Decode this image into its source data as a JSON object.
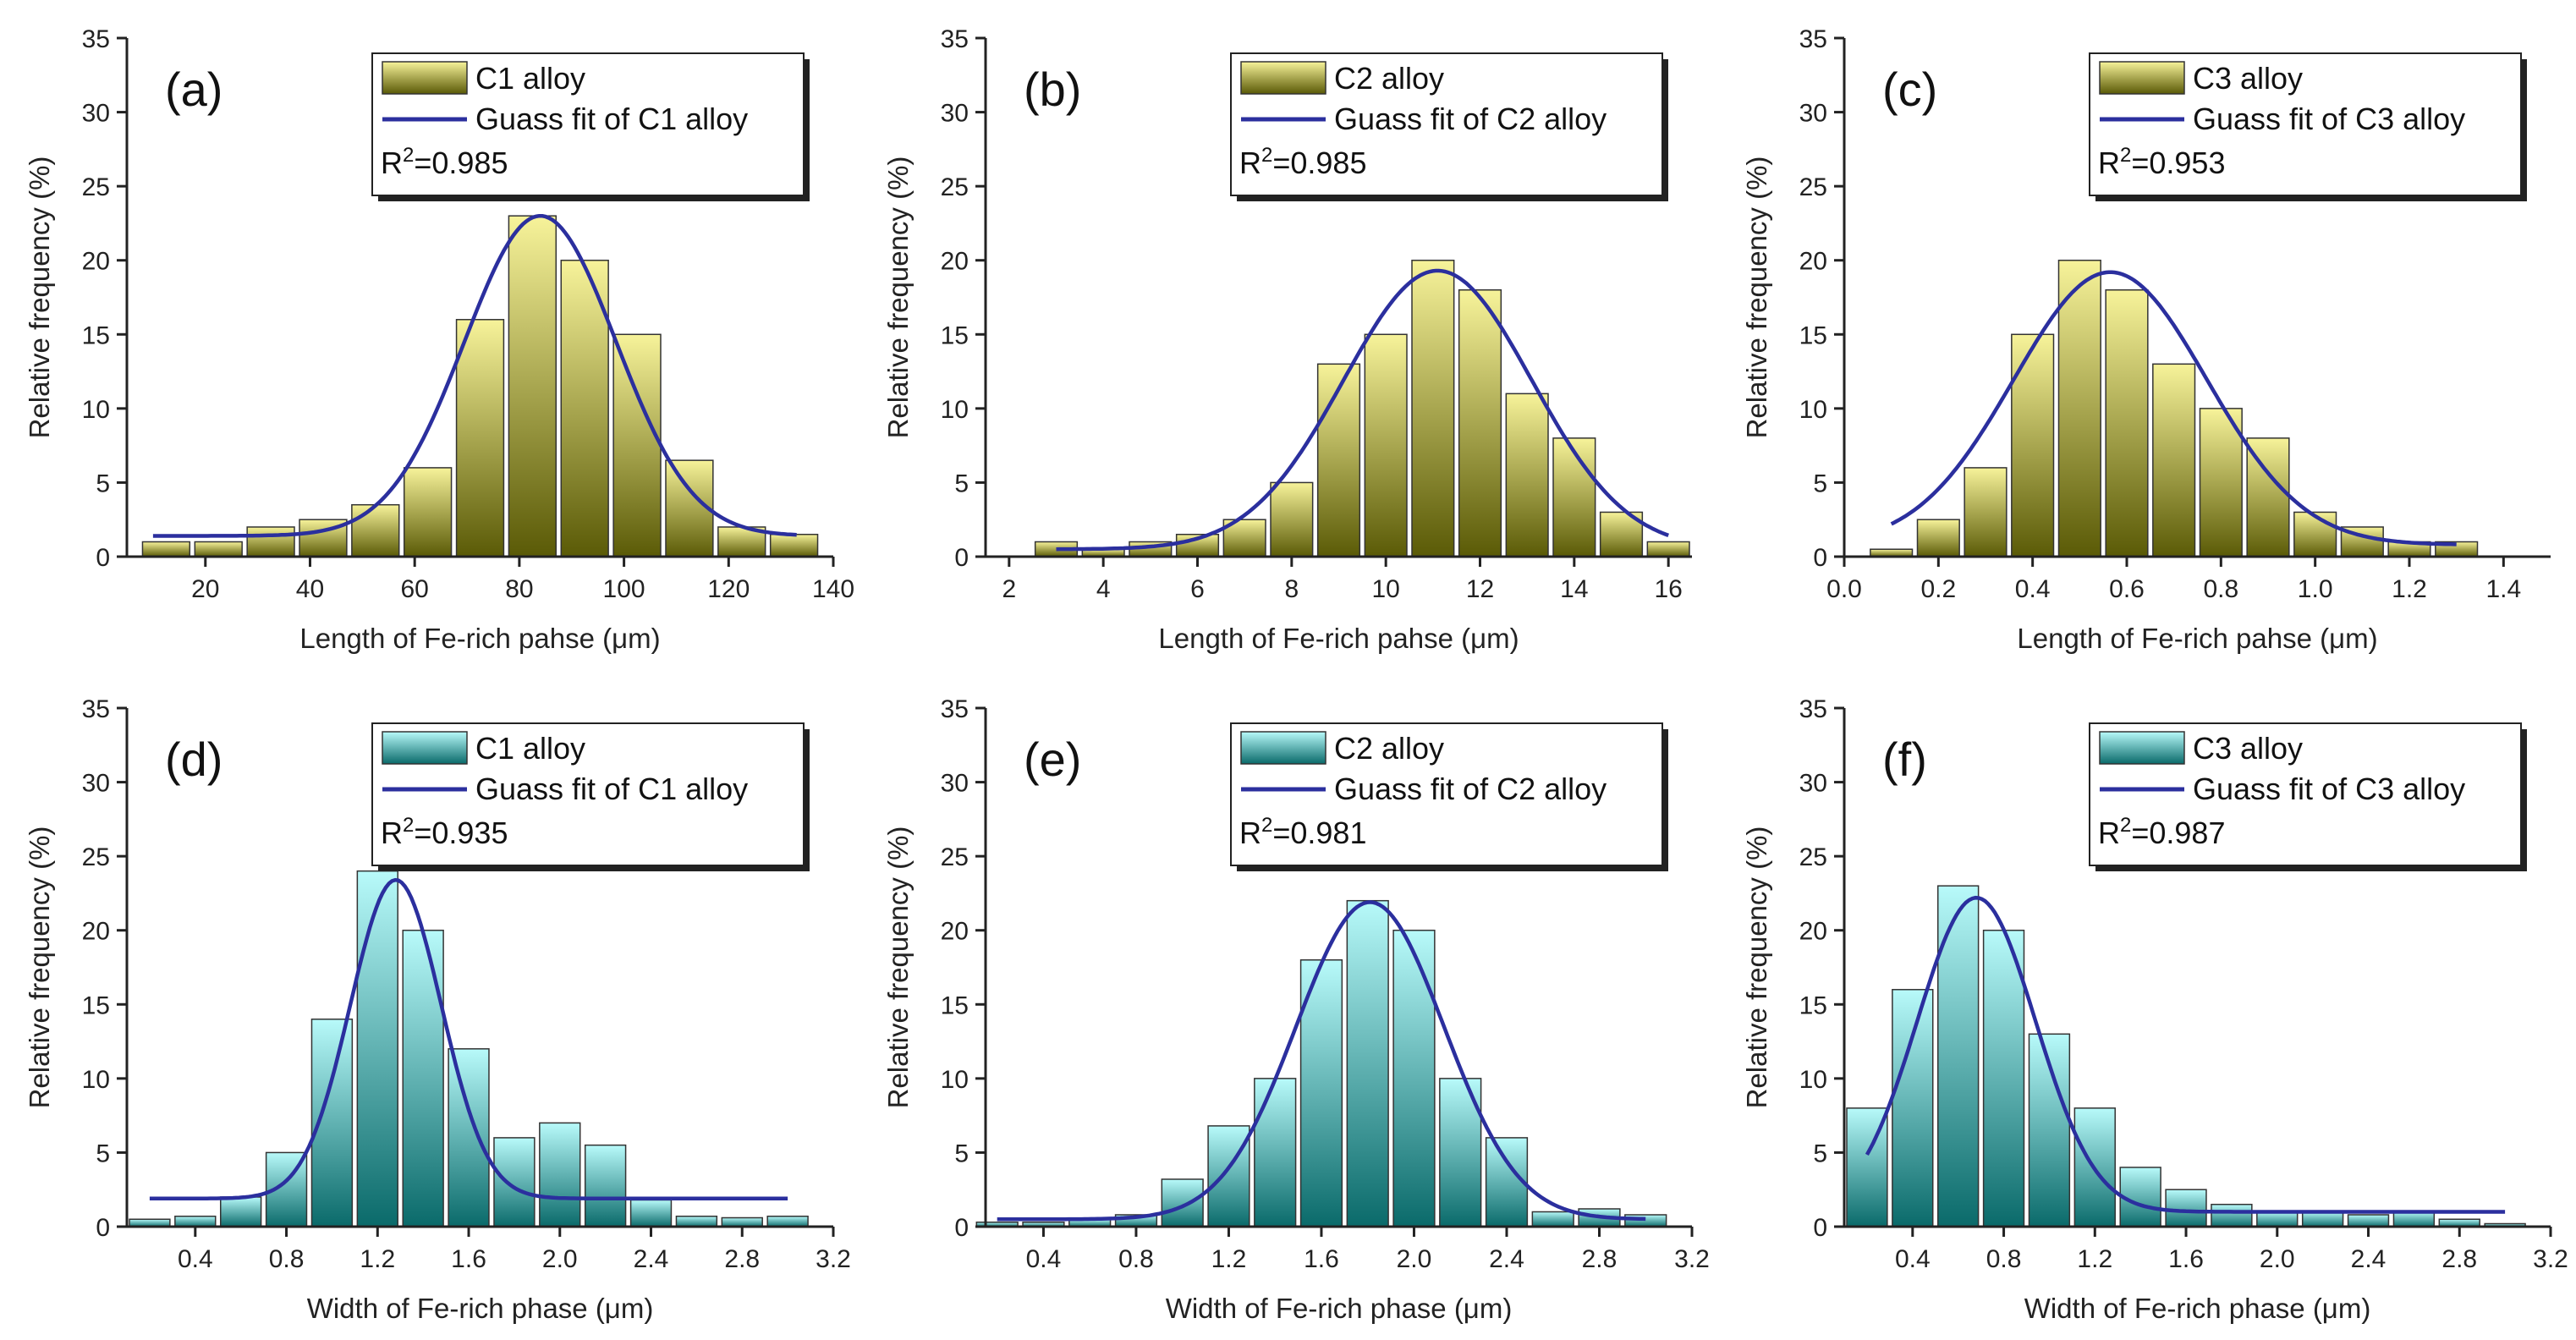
{
  "colors": {
    "fit": "#2b2f9e",
    "yellow_top": "#f7f39a",
    "yellow_bottom": "#5a5a06",
    "cyan_top": "#b8fafa",
    "cyan_bottom": "#0a6a6a"
  },
  "chart_data": [
    {
      "id": "a",
      "type": "bar",
      "panel_label": "(a)",
      "xlabel": "Length of Fe-rich pahse (μm)",
      "ylabel": "Relative frequency (%)",
      "xlim": [
        5,
        140
      ],
      "ylim": [
        0,
        35
      ],
      "x_ticks": [
        20,
        40,
        60,
        80,
        100,
        120,
        140
      ],
      "x_tick_labels": [
        "20",
        "40",
        "60",
        "80",
        "100",
        "120",
        "140"
      ],
      "y_ticks": [
        0,
        5,
        10,
        15,
        20,
        25,
        30,
        35
      ],
      "y_tick_labels": [
        "0",
        "5",
        "10",
        "15",
        "20",
        "25",
        "30",
        "35"
      ],
      "bin_width": 10,
      "x": [
        12.5,
        22.5,
        32.5,
        42.5,
        52.5,
        62.5,
        72.5,
        82.5,
        92.5,
        102.5,
        112.5,
        122.5,
        132.5
      ],
      "values": [
        1.0,
        1.0,
        2.0,
        2.5,
        3.5,
        6.0,
        16.0,
        23.0,
        20.0,
        15.0,
        6.5,
        2.0,
        1.5
      ],
      "fit": {
        "base": 1.4,
        "amp": 21.6,
        "center": 84,
        "sigma": 14.5,
        "range": [
          10,
          133
        ]
      },
      "palette": "yellow",
      "legend": {
        "bar_label": "C1 alloy",
        "fit_label": "Guass fit of C1 alloy",
        "r2_text": "R",
        "r2_sup": "2",
        "r2_value": "=0.985"
      }
    },
    {
      "id": "b",
      "type": "bar",
      "panel_label": "(b)",
      "xlabel": "Length of Fe-rich pahse (μm)",
      "ylabel": "Relative frequency (%)",
      "xlim": [
        1.5,
        16.5
      ],
      "ylim": [
        0,
        35
      ],
      "x_ticks": [
        2,
        4,
        6,
        8,
        10,
        12,
        14,
        16
      ],
      "x_tick_labels": [
        "2",
        "4",
        "6",
        "8",
        "10",
        "12",
        "14",
        "16"
      ],
      "y_ticks": [
        0,
        5,
        10,
        15,
        20,
        25,
        30,
        35
      ],
      "y_tick_labels": [
        "0",
        "5",
        "10",
        "15",
        "20",
        "25",
        "30",
        "35"
      ],
      "bin_width": 1,
      "x": [
        3,
        4,
        5,
        6,
        7,
        8,
        9,
        10,
        11,
        12,
        13,
        14,
        15,
        16
      ],
      "values": [
        1.0,
        0.5,
        1.0,
        1.5,
        2.5,
        5.0,
        13.0,
        15.0,
        20.0,
        18.0,
        11.0,
        8.0,
        3.0,
        1.0
      ],
      "fit": {
        "base": 0.5,
        "amp": 18.8,
        "center": 11.1,
        "sigma": 2.0,
        "range": [
          3,
          16
        ]
      },
      "palette": "yellow",
      "legend": {
        "bar_label": "C2 alloy",
        "fit_label": "Guass fit of C2 alloy",
        "r2_text": "R",
        "r2_sup": "2",
        "r2_value": "=0.985"
      }
    },
    {
      "id": "c",
      "type": "bar",
      "panel_label": "(c)",
      "xlabel": "Length of Fe-rich pahse (μm)",
      "ylabel": "Relative frequency (%)",
      "xlim": [
        0,
        1.5
      ],
      "ylim": [
        0,
        35
      ],
      "x_ticks": [
        0.0,
        0.2,
        0.4,
        0.6,
        0.8,
        1.0,
        1.2,
        1.4
      ],
      "x_tick_labels": [
        "0.0",
        "0.2",
        "0.4",
        "0.6",
        "0.8",
        "1.0",
        "1.2",
        "1.4"
      ],
      "y_ticks": [
        0,
        5,
        10,
        15,
        20,
        25,
        30,
        35
      ],
      "y_tick_labels": [
        "0",
        "5",
        "10",
        "15",
        "20",
        "25",
        "30",
        "35"
      ],
      "bin_width": 0.1,
      "x": [
        0.1,
        0.2,
        0.3,
        0.4,
        0.5,
        0.6,
        0.7,
        0.8,
        0.9,
        1.0,
        1.1,
        1.2,
        1.3
      ],
      "values": [
        0.5,
        2.5,
        6.0,
        15.0,
        20.0,
        18.0,
        13.0,
        10.0,
        8.0,
        3.0,
        2.0,
        1.0,
        1.0
      ],
      "fit": {
        "base": 0.8,
        "amp": 18.4,
        "center": 0.565,
        "sigma": 0.205,
        "range": [
          0.1,
          1.3
        ]
      },
      "palette": "yellow",
      "legend": {
        "bar_label": "C3 alloy",
        "fit_label": "Guass fit of C3 alloy",
        "r2_text": "R",
        "r2_sup": "2",
        "r2_value": "=0.953"
      }
    },
    {
      "id": "d",
      "type": "bar",
      "panel_label": "(d)",
      "xlabel": "Width of Fe-rich phase (μm)",
      "ylabel": "Relative frequency (%)",
      "xlim": [
        0.1,
        3.2
      ],
      "ylim": [
        0,
        35
      ],
      "x_ticks": [
        0.4,
        0.8,
        1.2,
        1.6,
        2.0,
        2.4,
        2.8,
        3.2
      ],
      "x_tick_labels": [
        "0.4",
        "0.8",
        "1.2",
        "1.6",
        "2.0",
        "2.4",
        "2.8",
        "3.2"
      ],
      "y_ticks": [
        0,
        5,
        10,
        15,
        20,
        25,
        30,
        35
      ],
      "y_tick_labels": [
        "0",
        "5",
        "10",
        "15",
        "20",
        "25",
        "30",
        "35"
      ],
      "bin_width": 0.2,
      "x": [
        0.2,
        0.4,
        0.6,
        0.8,
        1.0,
        1.2,
        1.4,
        1.6,
        1.8,
        2.0,
        2.2,
        2.4,
        2.6,
        2.8,
        3.0
      ],
      "values": [
        0.5,
        0.7,
        2.0,
        5.0,
        14.0,
        24.0,
        20.0,
        12.0,
        6.0,
        7.0,
        5.5,
        1.8,
        0.7,
        0.6,
        0.7
      ],
      "fit": {
        "base": 1.9,
        "amp": 21.5,
        "center": 1.28,
        "sigma": 0.2,
        "range": [
          0.2,
          3.0
        ]
      },
      "palette": "cyan",
      "legend": {
        "bar_label": "C1 alloy",
        "fit_label": "Guass fit of C1 alloy",
        "r2_text": "R",
        "r2_sup": "2",
        "r2_value": "=0.935"
      }
    },
    {
      "id": "e",
      "type": "bar",
      "panel_label": "(e)",
      "xlabel": "Width of Fe-rich phase (μm)",
      "ylabel": "Relative frequency (%)",
      "xlim": [
        0.15,
        3.2
      ],
      "ylim": [
        0,
        35
      ],
      "x_ticks": [
        0.4,
        0.8,
        1.2,
        1.6,
        2.0,
        2.4,
        2.8,
        3.2
      ],
      "x_tick_labels": [
        "0.4",
        "0.8",
        "1.2",
        "1.6",
        "2.0",
        "2.4",
        "2.8",
        "3.2"
      ],
      "y_ticks": [
        0,
        5,
        10,
        15,
        20,
        25,
        30,
        35
      ],
      "y_tick_labels": [
        "0",
        "5",
        "10",
        "15",
        "20",
        "25",
        "30",
        "35"
      ],
      "bin_width": 0.2,
      "x": [
        0.2,
        0.4,
        0.6,
        0.8,
        1.0,
        1.2,
        1.4,
        1.6,
        1.8,
        2.0,
        2.2,
        2.4,
        2.6,
        2.8,
        3.0
      ],
      "values": [
        0.3,
        0.3,
        0.5,
        0.8,
        3.2,
        6.8,
        10.0,
        18.0,
        22.0,
        20.0,
        10.0,
        6.0,
        1.0,
        1.2,
        0.8
      ],
      "fit": {
        "base": 0.5,
        "amp": 21.4,
        "center": 1.81,
        "sigma": 0.32,
        "range": [
          0.2,
          3.0
        ]
      },
      "palette": "cyan",
      "legend": {
        "bar_label": "C2 alloy",
        "fit_label": "Guass fit of C2 alloy",
        "r2_text": "R",
        "r2_sup": "2",
        "r2_value": "=0.981"
      }
    },
    {
      "id": "f",
      "type": "bar",
      "panel_label": "(f)",
      "xlabel": "Width of Fe-rich phase (μm)",
      "ylabel": "Relative frequency (%)",
      "xlim": [
        0.1,
        3.2
      ],
      "ylim": [
        0,
        35
      ],
      "x_ticks": [
        0.4,
        0.8,
        1.2,
        1.6,
        2.0,
        2.4,
        2.8,
        3.2
      ],
      "x_tick_labels": [
        "0.4",
        "0.8",
        "1.2",
        "1.6",
        "2.0",
        "2.4",
        "2.8",
        "3.2"
      ],
      "y_ticks": [
        0,
        5,
        10,
        15,
        20,
        25,
        30,
        35
      ],
      "y_tick_labels": [
        "0",
        "5",
        "10",
        "15",
        "20",
        "25",
        "30",
        "35"
      ],
      "bin_width": 0.2,
      "x": [
        0.2,
        0.4,
        0.6,
        0.8,
        1.0,
        1.2,
        1.4,
        1.6,
        1.8,
        2.0,
        2.2,
        2.4,
        2.6,
        2.8,
        3.0
      ],
      "values": [
        8.0,
        16.0,
        23.0,
        20.0,
        13.0,
        8.0,
        4.0,
        2.5,
        1.5,
        1.0,
        1.0,
        0.8,
        1.0,
        0.5,
        0.2
      ],
      "fit": {
        "base": 1.0,
        "amp": 21.2,
        "center": 0.68,
        "sigma": 0.26,
        "range": [
          0.2,
          3.0
        ]
      },
      "palette": "cyan",
      "legend": {
        "bar_label": "C3 alloy",
        "fit_label": "Guass fit of C3 alloy",
        "r2_text": "R",
        "r2_sup": "2",
        "r2_value": "=0.987"
      }
    }
  ]
}
